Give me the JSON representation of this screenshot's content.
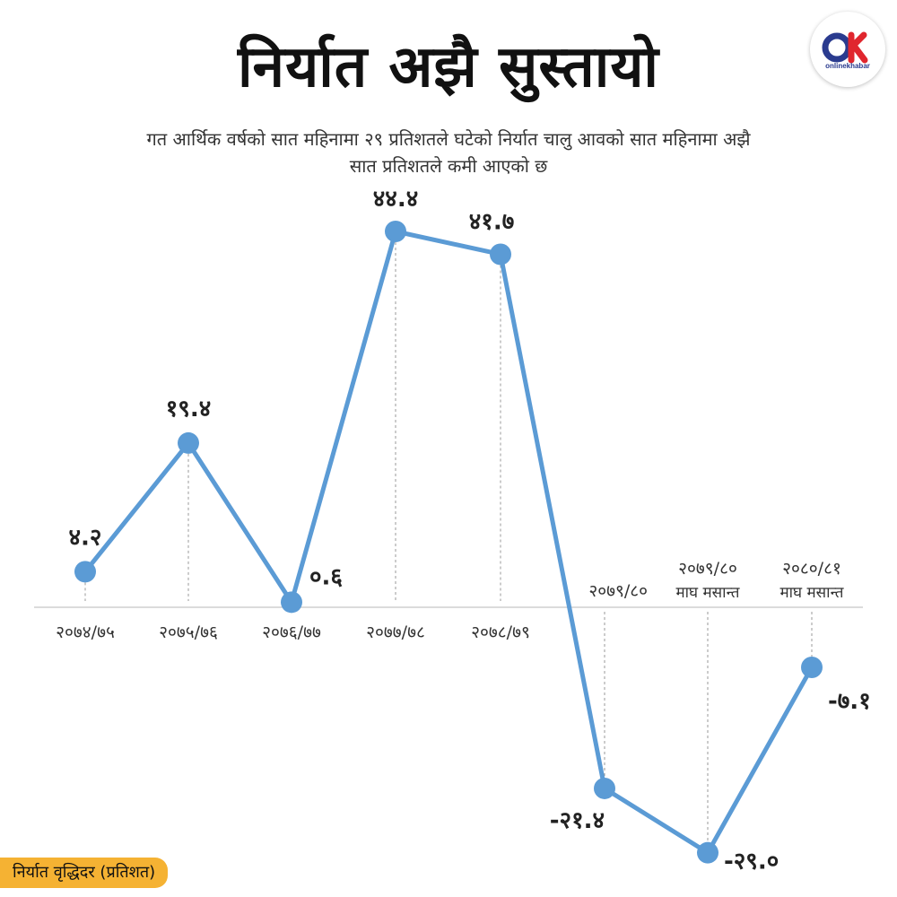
{
  "title": "निर्यात अझै सुस्तायो",
  "subtitle_line1": "गत आर्थिक वर्षको सात महिनामा २९ प्रतिशतले घटेको निर्यात चालु आवको सात महिनामा अझै",
  "subtitle_line2": "सात प्रतिशतले कमी आएको छ",
  "logo": {
    "text": "onlinekhabar",
    "mark": "OK"
  },
  "unit_label": "निर्यात वृद्धिदर  (प्रतिशत)",
  "colors": {
    "line": "#5b9bd5",
    "accent": "#f5b233",
    "logo_blue": "#2a3b8f",
    "logo_red": "#e0262e"
  },
  "chart_data": {
    "type": "line",
    "categories": [
      [
        "२०७४/७५"
      ],
      [
        "२०७५/७६"
      ],
      [
        "२०७६/७७"
      ],
      [
        "२०७७/७८"
      ],
      [
        "२०७८/७९"
      ],
      [
        "२०७९/८०"
      ],
      [
        "२०७९/८०",
        "माघ मसान्त"
      ],
      [
        "२०८०/८१",
        "माघ मसान्त"
      ]
    ],
    "values": [
      4.2,
      19.4,
      0.6,
      44.4,
      41.7,
      -21.4,
      -29.0,
      -7.1
    ],
    "value_labels": [
      "४.२",
      "१९.४",
      "०.६",
      "४४.४",
      "४१.७",
      "-२१.४",
      "-२९.०",
      "-७.१"
    ],
    "ylim": [
      -29.0,
      44.4
    ],
    "grid": false
  }
}
